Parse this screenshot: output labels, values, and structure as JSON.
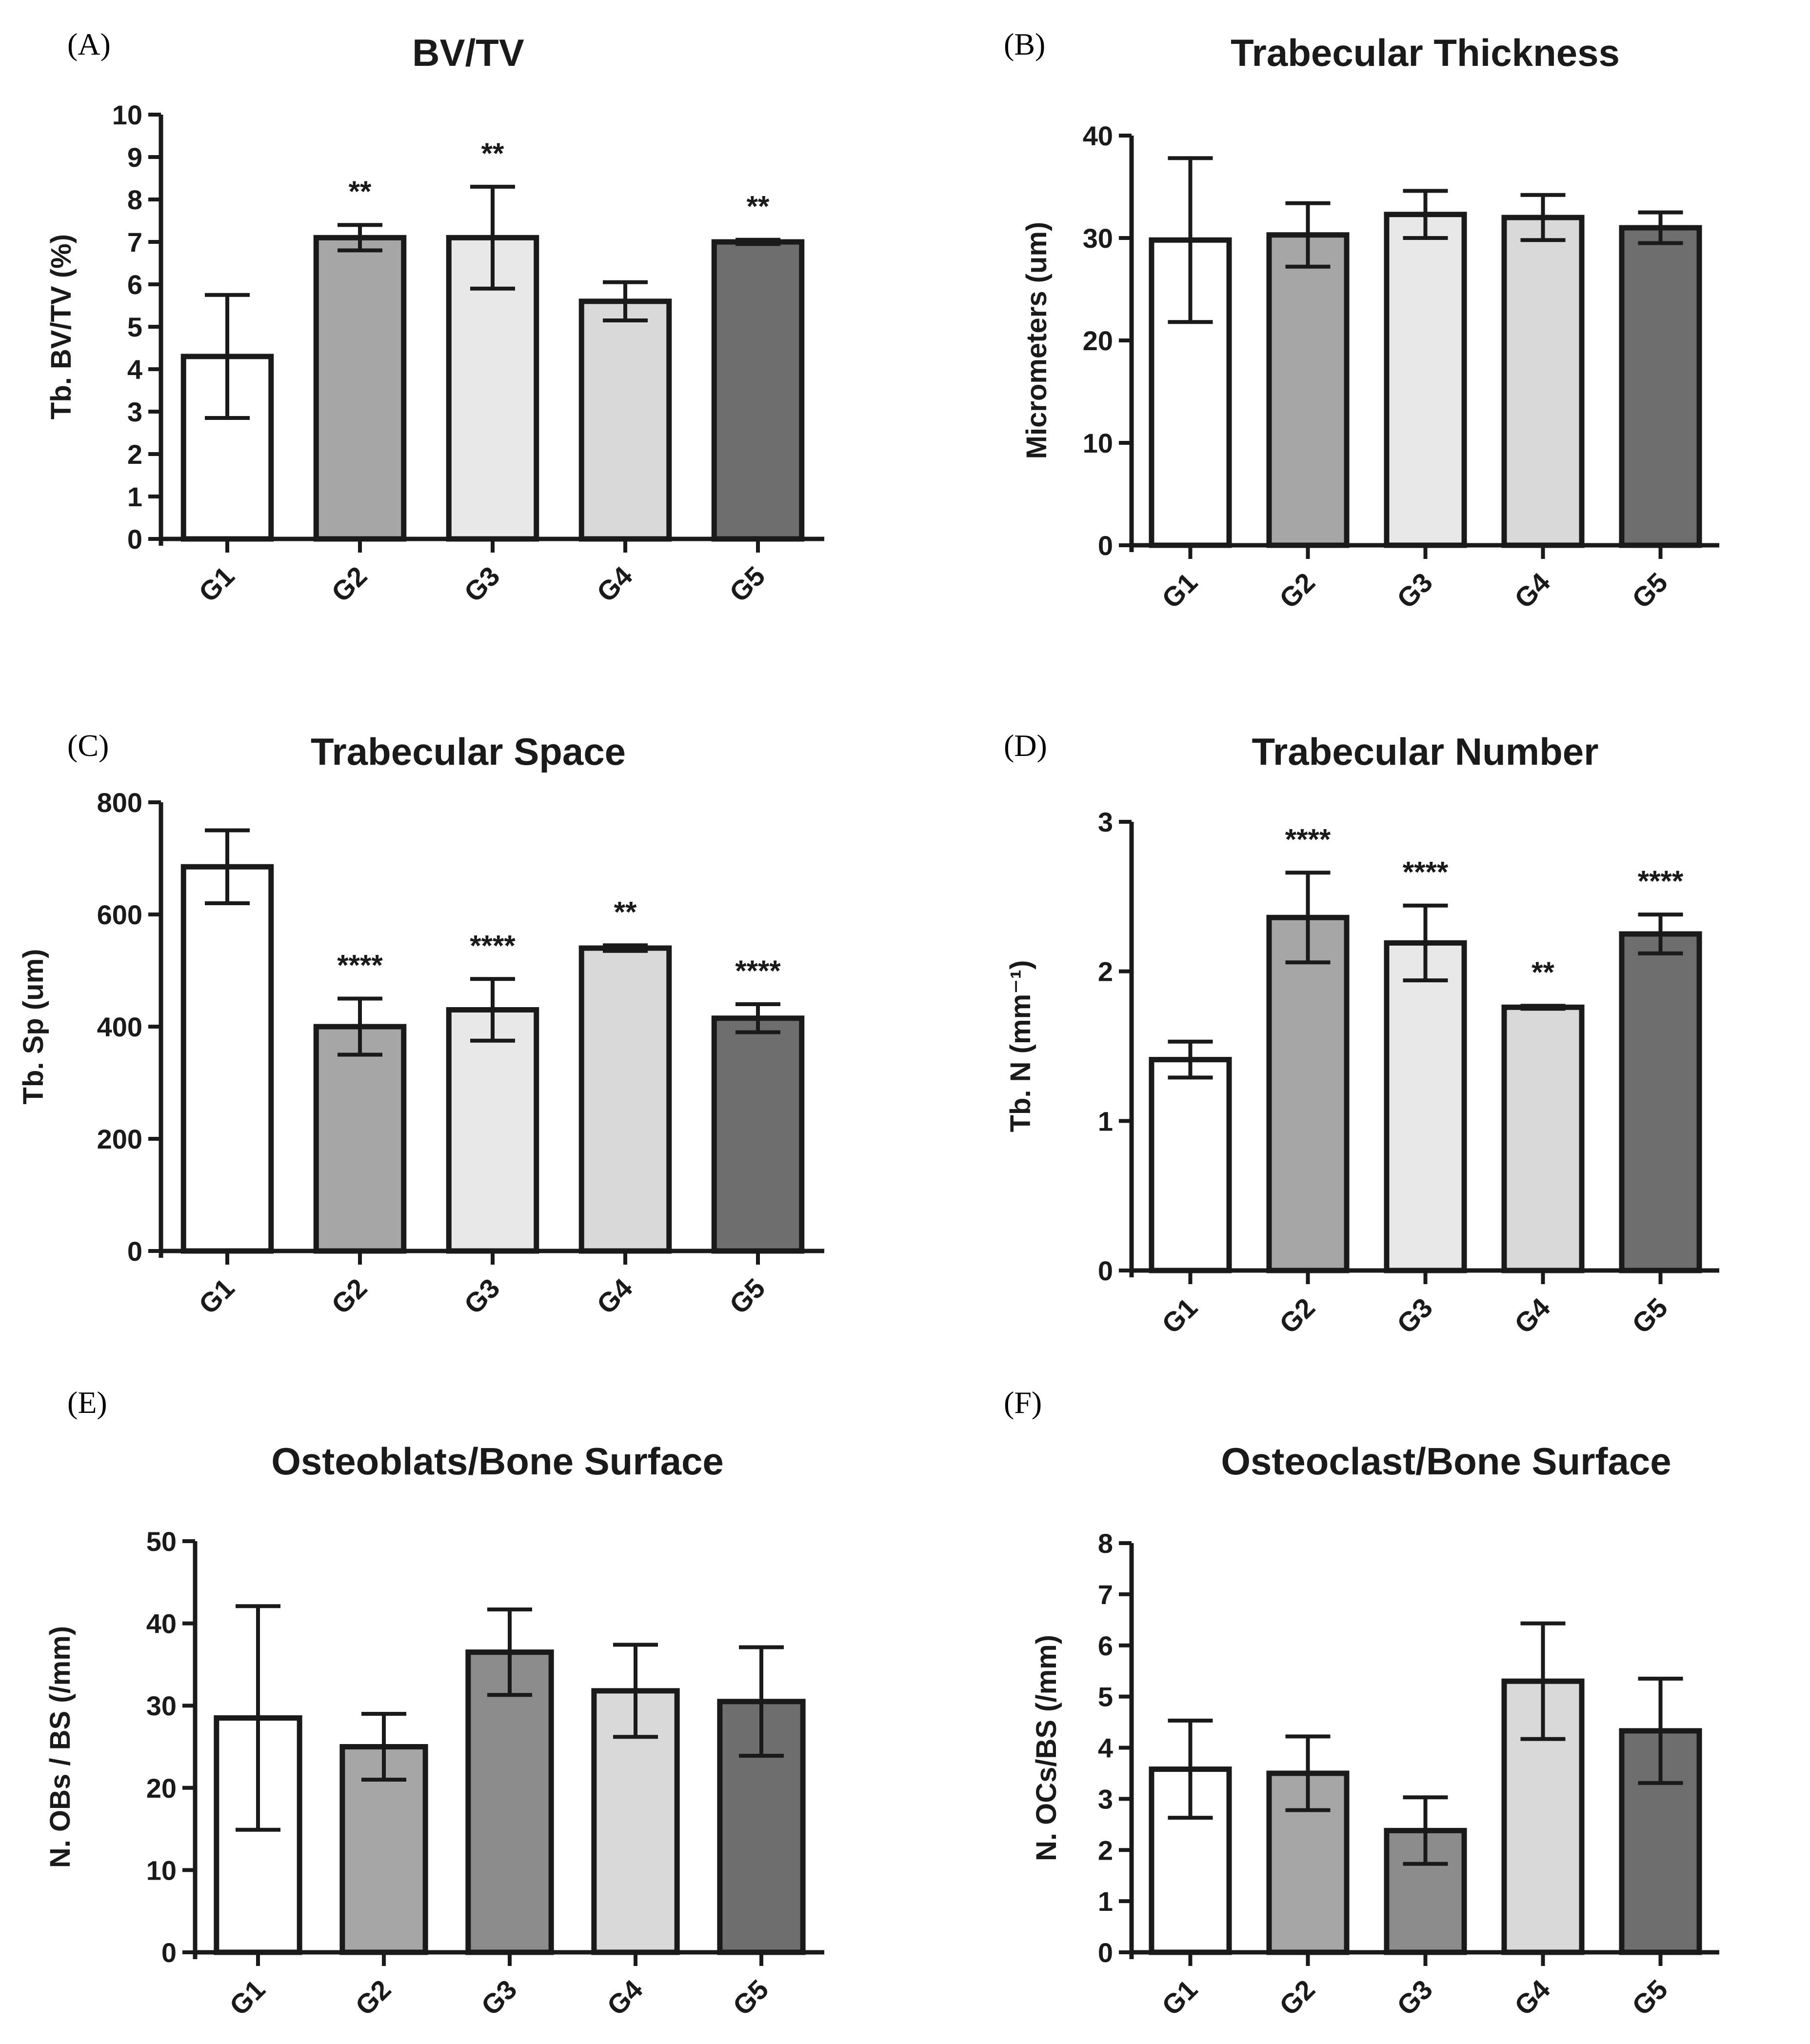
{
  "chart_data": [
    {
      "panel": "(A)",
      "type": "bar",
      "title": "BV/TV",
      "ylabel": "Tb. BV/TV (%)",
      "xlabel": "",
      "categories": [
        "G1",
        "G2",
        "G3",
        "G4",
        "G5"
      ],
      "values": [
        4.3,
        7.1,
        7.1,
        5.6,
        7.0
      ],
      "errors": [
        1.45,
        0.3,
        1.2,
        0.45,
        0.05
      ],
      "significance": [
        "",
        "**",
        "**",
        "",
        "**"
      ],
      "ylim": [
        0,
        10
      ],
      "yticks": [
        0,
        1,
        2,
        3,
        4,
        5,
        6,
        7,
        8,
        9,
        10
      ],
      "colors": [
        "#ffffff",
        "#a6a6a6",
        "#e8e8e8",
        "#d9d9d9",
        "#6e6e6e"
      ]
    },
    {
      "panel": "(B)",
      "type": "bar",
      "title": "Trabecular Thickness",
      "ylabel": "Micrometers (um)",
      "xlabel": "",
      "categories": [
        "G1",
        "G2",
        "G3",
        "G4",
        "G5"
      ],
      "values": [
        29.8,
        30.3,
        32.3,
        32.0,
        31.0
      ],
      "errors": [
        8.0,
        3.1,
        2.3,
        2.2,
        1.5
      ],
      "significance": [
        "",
        "",
        "",
        "",
        ""
      ],
      "ylim": [
        0,
        40
      ],
      "yticks": [
        0,
        10,
        20,
        30,
        40
      ],
      "colors": [
        "#ffffff",
        "#a6a6a6",
        "#e8e8e8",
        "#d9d9d9",
        "#6e6e6e"
      ]
    },
    {
      "panel": "(C)",
      "type": "bar",
      "title": "Trabecular Space",
      "ylabel": "Tb. Sp (um)",
      "xlabel": "",
      "categories": [
        "G1",
        "G2",
        "G3",
        "G4",
        "G5"
      ],
      "values": [
        685,
        400,
        430,
        540,
        415
      ],
      "errors": [
        65,
        50,
        55,
        5,
        25
      ],
      "significance": [
        "",
        "****",
        "****",
        "**",
        "****"
      ],
      "ylim": [
        0,
        800
      ],
      "yticks": [
        0,
        200,
        400,
        600,
        800
      ],
      "colors": [
        "#ffffff",
        "#a6a6a6",
        "#e8e8e8",
        "#d9d9d9",
        "#6e6e6e"
      ]
    },
    {
      "panel": "(D)",
      "type": "bar",
      "title": "Trabecular Number",
      "ylabel": "Tb. N (mm⁻¹)",
      "xlabel": "",
      "categories": [
        "G1",
        "G2",
        "G3",
        "G4",
        "G5"
      ],
      "values": [
        1.41,
        2.36,
        2.19,
        1.76,
        2.25
      ],
      "errors": [
        0.12,
        0.3,
        0.25,
        0.01,
        0.13
      ],
      "significance": [
        "",
        "****",
        "****",
        "**",
        "****"
      ],
      "ylim": [
        0,
        3
      ],
      "yticks": [
        0,
        1,
        2,
        3
      ],
      "colors": [
        "#ffffff",
        "#a6a6a6",
        "#e8e8e8",
        "#d9d9d9",
        "#6e6e6e"
      ]
    },
    {
      "panel": "(E)",
      "type": "bar",
      "title": "Osteoblats/Bone Surface",
      "ylabel": "N. OBs / BS (/mm)",
      "xlabel": "",
      "categories": [
        "G1",
        "G2",
        "G3",
        "G4",
        "G5"
      ],
      "values": [
        28.5,
        25.0,
        36.5,
        31.8,
        30.5
      ],
      "errors": [
        13.6,
        4.0,
        5.2,
        5.6,
        6.6
      ],
      "significance": [
        "",
        "",
        "",
        "",
        ""
      ],
      "ylim": [
        0,
        50
      ],
      "yticks": [
        0,
        10,
        20,
        30,
        40,
        50
      ],
      "colors": [
        "#ffffff",
        "#a6a6a6",
        "#8c8c8c",
        "#d9d9d9",
        "#6e6e6e"
      ]
    },
    {
      "panel": "(F)",
      "type": "bar",
      "title": "Osteoclast/Bone Surface",
      "ylabel": "N. OCs/BS  (/mm)",
      "xlabel": "",
      "categories": [
        "G1",
        "G2",
        "G3",
        "G4",
        "G5"
      ],
      "values": [
        3.58,
        3.5,
        2.38,
        5.3,
        4.33
      ],
      "errors": [
        0.95,
        0.72,
        0.65,
        1.13,
        1.02
      ],
      "significance": [
        "",
        "",
        "",
        "",
        ""
      ],
      "ylim": [
        0,
        8
      ],
      "yticks": [
        0,
        1,
        2,
        3,
        4,
        5,
        6,
        7,
        8
      ],
      "colors": [
        "#ffffff",
        "#a6a6a6",
        "#8c8c8c",
        "#d9d9d9",
        "#6e6e6e"
      ]
    }
  ]
}
